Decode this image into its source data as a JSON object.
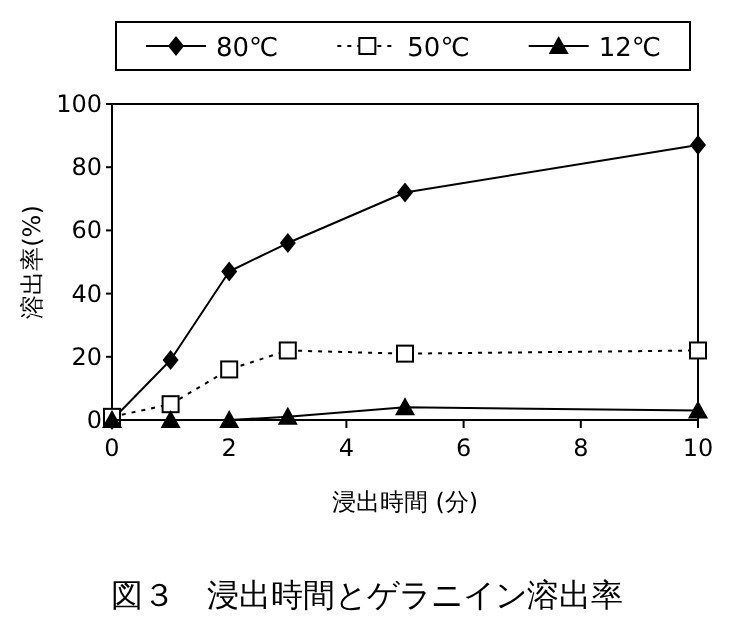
{
  "chart_data": {
    "type": "line",
    "title": "図３　浸出時間とゲラニイン溶出率",
    "xlabel": "浸出時間 (分)",
    "ylabel": "溶出率(%)",
    "x": [
      0,
      1,
      2,
      3,
      5,
      10
    ],
    "series": [
      {
        "name": "80℃",
        "color": "#000000",
        "marker": "diamond",
        "line_style": "solid",
        "values": [
          0,
          19,
          47,
          56,
          72,
          87
        ]
      },
      {
        "name": "50℃",
        "color": "#000000",
        "marker": "square",
        "line_style": "dotted",
        "values": [
          1,
          5,
          16,
          22,
          21,
          22
        ]
      },
      {
        "name": "12℃",
        "color": "#000000",
        "marker": "triangle",
        "line_style": "solid",
        "values": [
          0,
          0,
          0,
          1,
          4,
          3
        ]
      }
    ],
    "xlim": [
      0,
      10
    ],
    "xticks": [
      0,
      2,
      4,
      6,
      8,
      10
    ],
    "ylim": [
      0,
      100
    ],
    "yticks": [
      0,
      20,
      40,
      60,
      80,
      100
    ],
    "grid": false,
    "legend": "top"
  }
}
